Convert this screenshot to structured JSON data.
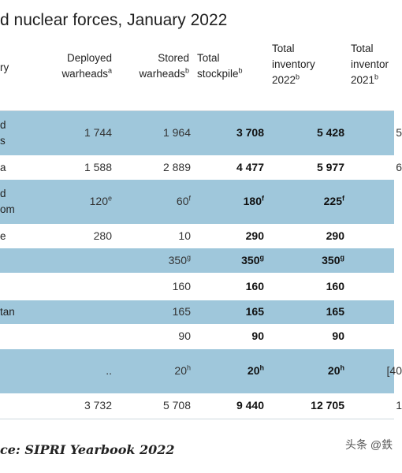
{
  "title": "d nuclear forces, January 2022",
  "headers": {
    "country": [
      "ry"
    ],
    "deployed": [
      "Deployed",
      "warheads"
    ],
    "deployed_sup": "a",
    "stored": [
      "Stored",
      "warheads"
    ],
    "stored_sup": "b",
    "stockpile": [
      "Total",
      "stockpile"
    ],
    "stockpile_sup": "b",
    "inv2022": [
      "Total",
      "inventory",
      "2022"
    ],
    "inv2022_sup": "b",
    "inv2021": [
      "Total",
      "inventor",
      "2021"
    ],
    "inv2021_sup": "b"
  },
  "rows": [
    {
      "country": "d\ns",
      "deployed": "1 744",
      "stored": "1 964",
      "stockpile": "3 708",
      "inv2022": "5 428",
      "inv2021": "5"
    },
    {
      "country": "a",
      "deployed": "1 588",
      "stored": "2 889",
      "stockpile": "4 477",
      "inv2022": "5 977",
      "inv2021": "6"
    },
    {
      "country": "d\nom",
      "deployed": "120",
      "deployed_sup": "e",
      "stored": "60",
      "stored_sup": "f",
      "stockpile": "180",
      "stockpile_sup": "f",
      "inv2022": "225",
      "inv2022_sup": "f",
      "inv2021": ""
    },
    {
      "country": "e",
      "deployed": "280",
      "stored": "10",
      "stockpile": "290",
      "inv2022": "290",
      "inv2021": ""
    },
    {
      "country": "",
      "deployed": "",
      "stored": "350",
      "stored_sup": "g",
      "stockpile": "350",
      "stockpile_sup": "g",
      "inv2022": "350",
      "inv2022_sup": "g",
      "inv2021": ""
    },
    {
      "country": "",
      "deployed": "",
      "stored": "160",
      "stockpile": "160",
      "inv2022": "160",
      "inv2021": ""
    },
    {
      "country": "tan",
      "deployed": "",
      "stored": "165",
      "stockpile": "165",
      "inv2022": "165",
      "inv2021": ""
    },
    {
      "country": "",
      "deployed": "",
      "stored": "90",
      "stockpile": "90",
      "inv2022": "90",
      "inv2021": ""
    },
    {
      "country": "",
      "deployed": "..",
      "stored": "20",
      "stored_sup": "h",
      "stockpile": "20",
      "stockpile_sup": "h",
      "inv2022": "20",
      "inv2022_sup": "h",
      "inv2021": "[40"
    },
    {
      "country": "",
      "deployed": "3 732",
      "stored": "5 708",
      "stockpile": "9 440",
      "inv2022": "12 705",
      "inv2021": "1"
    }
  ],
  "source": "ce: SIPRI Yearbook 2022",
  "watermark": "头条 @鉄"
}
